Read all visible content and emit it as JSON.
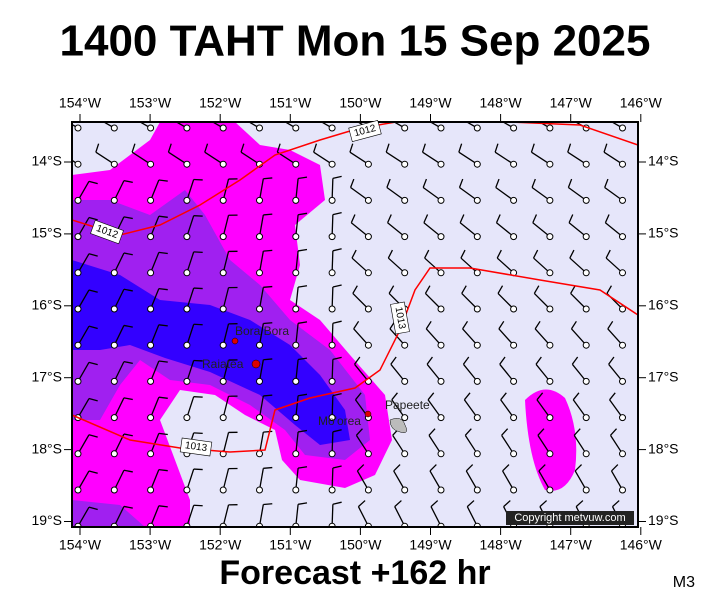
{
  "title": "1400 TAHT Mon 15 Sep 2025",
  "map": {
    "lon_labels": [
      "154°W",
      "153°W",
      "152°W",
      "151°W",
      "150°W",
      "149°W",
      "148°W",
      "147°W",
      "146°W"
    ],
    "lat_labels": [
      "14°S",
      "15°S",
      "16°S",
      "17°S",
      "18°S",
      "19°S"
    ],
    "places": [
      "Bora Bora",
      "Raiatea",
      "Mo'orea",
      "Papeete"
    ],
    "isobars": [
      "1012",
      "1012",
      "1013",
      "1013"
    ],
    "copyright": "Copyright metvuw.com"
  },
  "footer": "Forecast +162 hr",
  "model": "M3"
}
